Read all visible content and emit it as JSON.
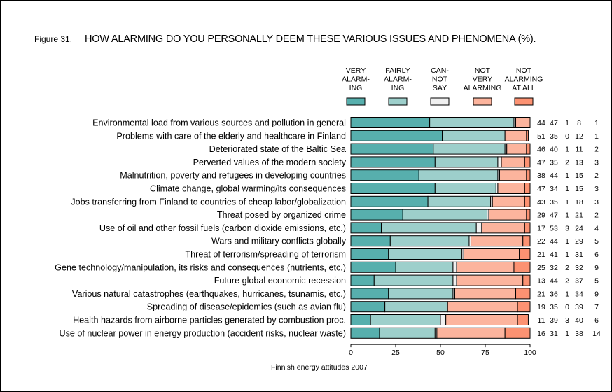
{
  "figure_label": "Figure 31.",
  "title": "HOW ALARMING DO YOU PERSONALLY DEEM THESE VARIOUS ISSUES AND PHENOMENA (%).",
  "source": "Finnish energy attitudes 2007",
  "chart_data": {
    "type": "bar",
    "orientation": "horizontal",
    "stacked": true,
    "title": "HOW ALARMING DO YOU PERSONALLY DEEM THESE VARIOUS ISSUES AND PHENOMENA (%).",
    "xlim": [
      0,
      100
    ],
    "xticks": [
      "0",
      "25",
      "50",
      "75",
      "100"
    ],
    "grid": false,
    "legend_position": "top",
    "categories": [
      "Environmental load from various sources and pollution in general",
      "Problems with care of the elderly and healthcare in Finland",
      "Deteriorated state of the Baltic Sea",
      "Perverted values of the modern society",
      "Malnutrition, poverty and refugees in developing countries",
      "Climate change, global warming/its consequences",
      "Jobs transferring from Finland to countries of cheap labor/globalization",
      "Threat posed by organized crime",
      "Use of oil and other fossil fuels (carbon dioxide emissions, etc.)",
      "Wars and military conflicts globally",
      "Threat of terrorism/spreading of terrorism",
      "Gene technology/manipulation, its risks and consequences (nutrients, etc.)",
      "Future global economic recession",
      "Various natural catastrophes (earthquakes, hurricanes, tsunamis, etc.)",
      "Spreading of disease/epidemics (such as avian flu)",
      "Health hazards from airborne particles generated by combustion proc.",
      "Use of nuclear power in energy production (accident risks, nuclear waste)"
    ],
    "series": [
      {
        "name": [
          "VERY",
          "ALARM-",
          "ING"
        ],
        "color": "#57afad",
        "values": [
          44,
          51,
          46,
          47,
          38,
          47,
          43,
          29,
          17,
          22,
          21,
          25,
          13,
          21,
          19,
          11,
          16
        ]
      },
      {
        "name": [
          "FAIRLY",
          "ALARM-",
          "ING"
        ],
        "color": "#9dcfcb",
        "values": [
          47,
          35,
          40,
          35,
          44,
          34,
          35,
          47,
          53,
          44,
          41,
          32,
          44,
          36,
          35,
          39,
          31
        ]
      },
      {
        "name": [
          "CAN-",
          "NOT",
          "SAY"
        ],
        "color": "#f0f0f0",
        "values": [
          1,
          0,
          1,
          2,
          1,
          1,
          1,
          1,
          3,
          1,
          1,
          2,
          2,
          1,
          0,
          3,
          1
        ]
      },
      {
        "name": [
          "NOT",
          "VERY",
          "ALARMING"
        ],
        "color": "#fcb49d",
        "values": [
          8,
          12,
          11,
          13,
          15,
          15,
          18,
          21,
          24,
          29,
          31,
          32,
          37,
          34,
          39,
          40,
          38
        ]
      },
      {
        "name": [
          "NOT",
          "ALARMING",
          "AT ALL"
        ],
        "color": "#fc9272",
        "values": [
          1,
          1,
          2,
          3,
          2,
          3,
          3,
          2,
          4,
          5,
          6,
          9,
          5,
          9,
          7,
          6,
          14
        ]
      }
    ]
  }
}
